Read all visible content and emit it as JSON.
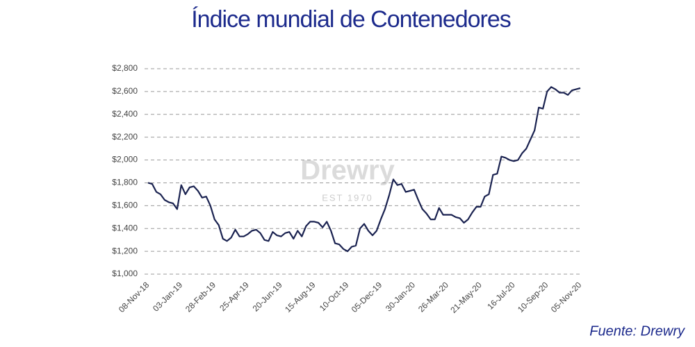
{
  "chart_data": {
    "type": "line",
    "title": "Índice mundial de Contenedores",
    "watermark": "Drewry",
    "watermark_subtitle": "EST 1970",
    "source": "Fuente:  Drewry",
    "categories": [
      "08-Nov-18",
      null,
      null,
      null,
      null,
      null,
      null,
      null,
      "03-Jan-19",
      null,
      null,
      null,
      null,
      null,
      null,
      null,
      "28-Feb-19",
      null,
      null,
      null,
      null,
      null,
      null,
      null,
      "25-Apr-19",
      null,
      null,
      null,
      null,
      null,
      null,
      null,
      "20-Jun-19",
      null,
      null,
      null,
      null,
      null,
      null,
      null,
      "15-Aug-19",
      null,
      null,
      null,
      null,
      null,
      null,
      null,
      "10-Oct-19",
      null,
      null,
      null,
      null,
      null,
      null,
      null,
      "05-Dec-19",
      null,
      null,
      null,
      null,
      null,
      null,
      null,
      "30-Jan-20",
      null,
      null,
      null,
      null,
      null,
      null,
      null,
      "26-Mar-20",
      null,
      null,
      null,
      null,
      null,
      null,
      null,
      "21-May-20",
      null,
      null,
      null,
      null,
      null,
      null,
      null,
      "16-Jul-20",
      null,
      null,
      null,
      null,
      null,
      null,
      null,
      "10-Sep-20",
      null,
      null,
      null,
      null,
      null,
      null,
      null,
      "05-Nov-20"
    ],
    "series": [
      {
        "color": "#1a2250",
        "values": [
          1800,
          1790,
          1720,
          1700,
          1650,
          1630,
          1620,
          1570,
          1780,
          1700,
          1760,
          1770,
          1730,
          1670,
          1680,
          1600,
          1480,
          1430,
          1310,
          1290,
          1320,
          1390,
          1330,
          1330,
          1350,
          1380,
          1390,
          1360,
          1300,
          1290,
          1370,
          1340,
          1330,
          1360,
          1370,
          1310,
          1380,
          1330,
          1420,
          1460,
          1460,
          1450,
          1410,
          1460,
          1380,
          1270,
          1260,
          1220,
          1200,
          1240,
          1250,
          1400,
          1440,
          1380,
          1340,
          1380,
          1480,
          1570,
          1690,
          1830,
          1780,
          1790,
          1720,
          1730,
          1740,
          1650,
          1570,
          1530,
          1480,
          1480,
          1580,
          1520,
          1520,
          1520,
          1500,
          1490,
          1450,
          1480,
          1540,
          1590,
          1590,
          1680,
          1700,
          1870,
          1880,
          2030,
          2020,
          2000,
          1990,
          2000,
          2060,
          2100,
          2180,
          2260,
          2460,
          2450,
          2600,
          2640,
          2620,
          2590,
          2590,
          2570,
          2610,
          2620,
          2630
        ]
      }
    ],
    "ylim": [
      1000,
      2800
    ],
    "yticks": [
      {
        "value": 1000,
        "label": "$1,000"
      },
      {
        "value": 1200,
        "label": "$1,200"
      },
      {
        "value": 1400,
        "label": "$1,400"
      },
      {
        "value": 1600,
        "label": "$1,600"
      },
      {
        "value": 1800,
        "label": "$1,800"
      },
      {
        "value": 2000,
        "label": "$2,000"
      },
      {
        "value": 2200,
        "label": "$2,200"
      },
      {
        "value": 2400,
        "label": "$2,400"
      },
      {
        "value": 2600,
        "label": "$2,600"
      },
      {
        "value": 2800,
        "label": "$2,800"
      }
    ],
    "grid": true
  }
}
